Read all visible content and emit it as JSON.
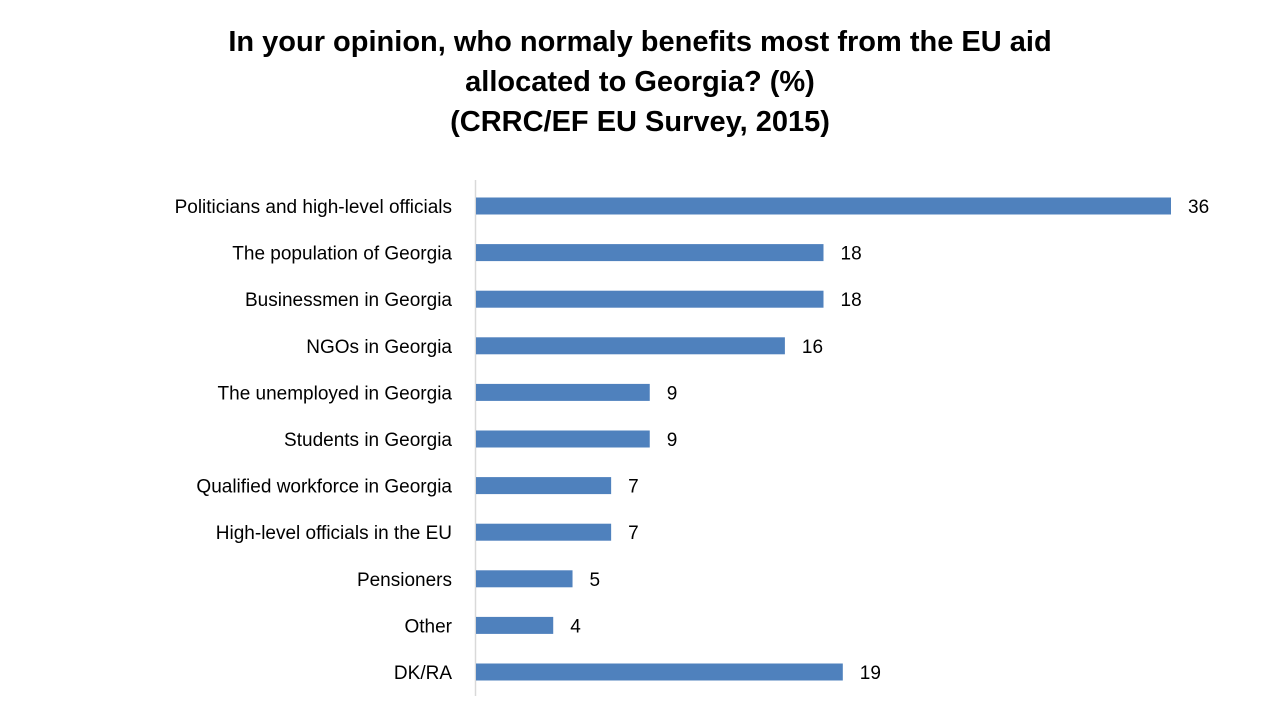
{
  "chart_data": {
    "type": "bar",
    "orientation": "horizontal",
    "title": [
      "In your opinion, who normaly benefits most from the EU aid",
      "allocated to Georgia? (%)",
      "(CRRC/EF EU Survey, 2015)"
    ],
    "categories": [
      "Politicians and high-level officials",
      "The population of Georgia",
      "Businessmen in Georgia",
      "NGOs in Georgia",
      "The unemployed in Georgia",
      "Students in Georgia",
      "Qualified workforce in Georgia",
      "High-level officials in the EU",
      "Pensioners",
      "Other",
      "DK/RA"
    ],
    "values": [
      36,
      18,
      18,
      16,
      9,
      9,
      7,
      7,
      5,
      4,
      19
    ],
    "xlim": [
      0,
      36
    ],
    "grid": false,
    "legend": "none",
    "data_labels": true,
    "bar_color": "#4f81bd",
    "xlabel": "",
    "ylabel": ""
  }
}
